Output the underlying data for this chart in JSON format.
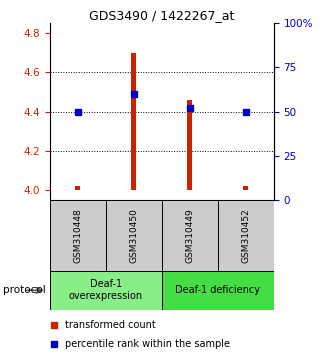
{
  "title": "GDS3490 / 1422267_at",
  "samples": [
    "GSM310448",
    "GSM310450",
    "GSM310449",
    "GSM310452"
  ],
  "transformed_counts": [
    4.02,
    4.7,
    4.46,
    4.02
  ],
  "percentile_ranks": [
    50,
    60,
    52,
    50
  ],
  "ylim_left": [
    3.95,
    4.85
  ],
  "ylim_right": [
    0,
    100
  ],
  "yticks_left": [
    4.0,
    4.2,
    4.4,
    4.6,
    4.8
  ],
  "yticks_right": [
    0,
    25,
    50,
    75,
    100
  ],
  "ytick_labels_right": [
    "0",
    "25",
    "50",
    "75",
    "100%"
  ],
  "bar_color": "#cc2200",
  "marker_color": "#0000cc",
  "bar_bottom": 4.0,
  "protocols": [
    {
      "label": "Deaf-1\noverexpression",
      "start": 0,
      "end": 2,
      "color": "#88ee88"
    },
    {
      "label": "Deaf-1 deficiency",
      "start": 2,
      "end": 4,
      "color": "#44dd44"
    }
  ],
  "protocol_label": "protocol",
  "legend_red": "transformed count",
  "legend_blue": "percentile rank within the sample",
  "left_axis_color": "#cc2200",
  "right_axis_color": "#0000cc",
  "sample_box_color": "#cccccc",
  "bar_width": 0.08
}
